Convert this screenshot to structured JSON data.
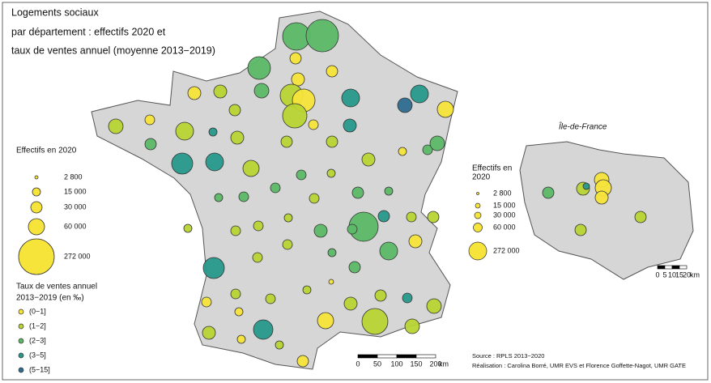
{
  "map": {
    "title": [
      "Logements sociaux",
      "par département : effectifs 2020 et",
      "taux de ventes annuel (moyenne 2013−2019)"
    ],
    "size_legend": {
      "title": "Effectifs en 2020",
      "labels": [
        "2 800",
        "15 000",
        "30 000",
        "60 000",
        "272 000"
      ]
    },
    "rate_legend": {
      "title": [
        "Taux de ventes annuel",
        "2013−2019 (en ‰)"
      ],
      "classes": [
        {
          "label": "(0−1]",
          "color": "#f7e43a"
        },
        {
          "label": "(1−2]",
          "color": "#b8d433"
        },
        {
          "label": "(2−3]",
          "color": "#5cb867"
        },
        {
          "label": "(3−5]",
          "color": "#27998b"
        },
        {
          "label": "(5−15]",
          "color": "#2e6b8f"
        }
      ]
    },
    "scale": {
      "labels": [
        "0",
        "50",
        "100",
        "150",
        "200",
        "km"
      ]
    },
    "inset": {
      "title": "Île-de-France",
      "legend_title": [
        "Effectifs en",
        "2020"
      ],
      "labels": [
        "2 800",
        "15 000",
        "30 000",
        "60 000",
        "272 000"
      ],
      "scale": {
        "labels": [
          "0",
          "5",
          "10",
          "15",
          "20",
          "km"
        ]
      }
    },
    "source": [
      "Source : RPLS 2013−2020",
      "Réalisation : Carolina Borré, UMR EVS et Florence Goffette-Nagot, UMR GATE"
    ]
  }
}
